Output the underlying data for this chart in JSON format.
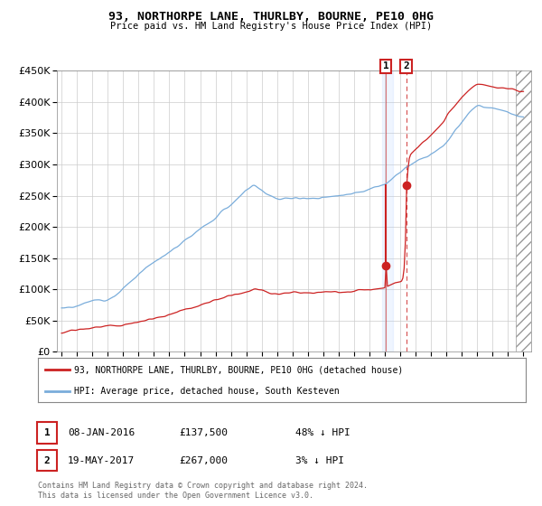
{
  "title": "93, NORTHORPE LANE, THURLBY, BOURNE, PE10 0HG",
  "subtitle": "Price paid vs. HM Land Registry's House Price Index (HPI)",
  "red_label": "93, NORTHORPE LANE, THURLBY, BOURNE, PE10 0HG (detached house)",
  "blue_label": "HPI: Average price, detached house, South Kesteven",
  "footer": "Contains HM Land Registry data © Crown copyright and database right 2024.\nThis data is licensed under the Open Government Licence v3.0.",
  "sale1_date": 2016.05,
  "sale1_price": 137500,
  "sale2_date": 2017.38,
  "sale2_price": 267000,
  "hpi_color": "#7aaddb",
  "house_color": "#cc2222",
  "grid_color": "#cccccc",
  "bg_color": "#ffffff",
  "plot_bg": "#ffffff",
  "ylim_max": 450000,
  "xlim_start": 1994.7,
  "xlim_end": 2025.5
}
